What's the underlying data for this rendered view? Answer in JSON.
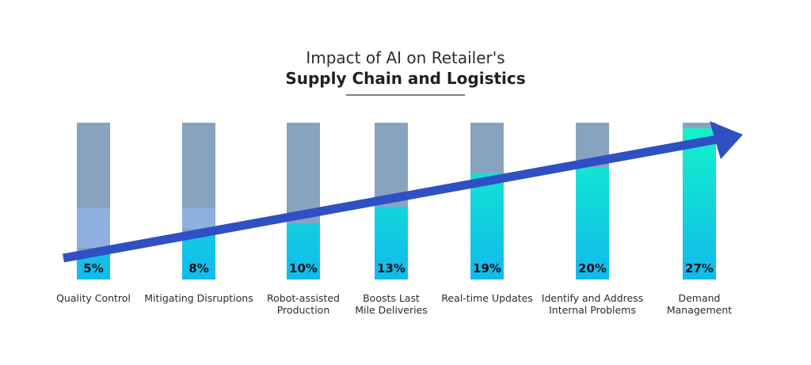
{
  "chart_data": {
    "type": "bar",
    "title": "Impact of AI on Retailer's",
    "subtitle": "Supply Chain and Logistics",
    "categories": [
      [
        "Quality Control"
      ],
      [
        "Mitigating Disruptions"
      ],
      [
        "Robot-assisted",
        "Production"
      ],
      [
        "Boosts Last",
        "Mile Deliveries"
      ],
      [
        "Real-time Updates"
      ],
      [
        "Identify and Address",
        "Internal Problems"
      ],
      [
        "Demand",
        "Management"
      ]
    ],
    "values": [
      5,
      8,
      10,
      13,
      19,
      20,
      27
    ],
    "value_labels": [
      "5%",
      "8%",
      "10%",
      "13%",
      "19%",
      "20%",
      "27%"
    ],
    "ylim": [
      0,
      28
    ],
    "grid": false,
    "legend": "none",
    "colors": {
      "track": "#88a3c0",
      "track_overlap": "#8fb0df",
      "fill_top": "#12f5c8",
      "fill_bottom": "#12b9ee",
      "arrow": "#2f50c4",
      "title_rule": "#333333"
    }
  }
}
